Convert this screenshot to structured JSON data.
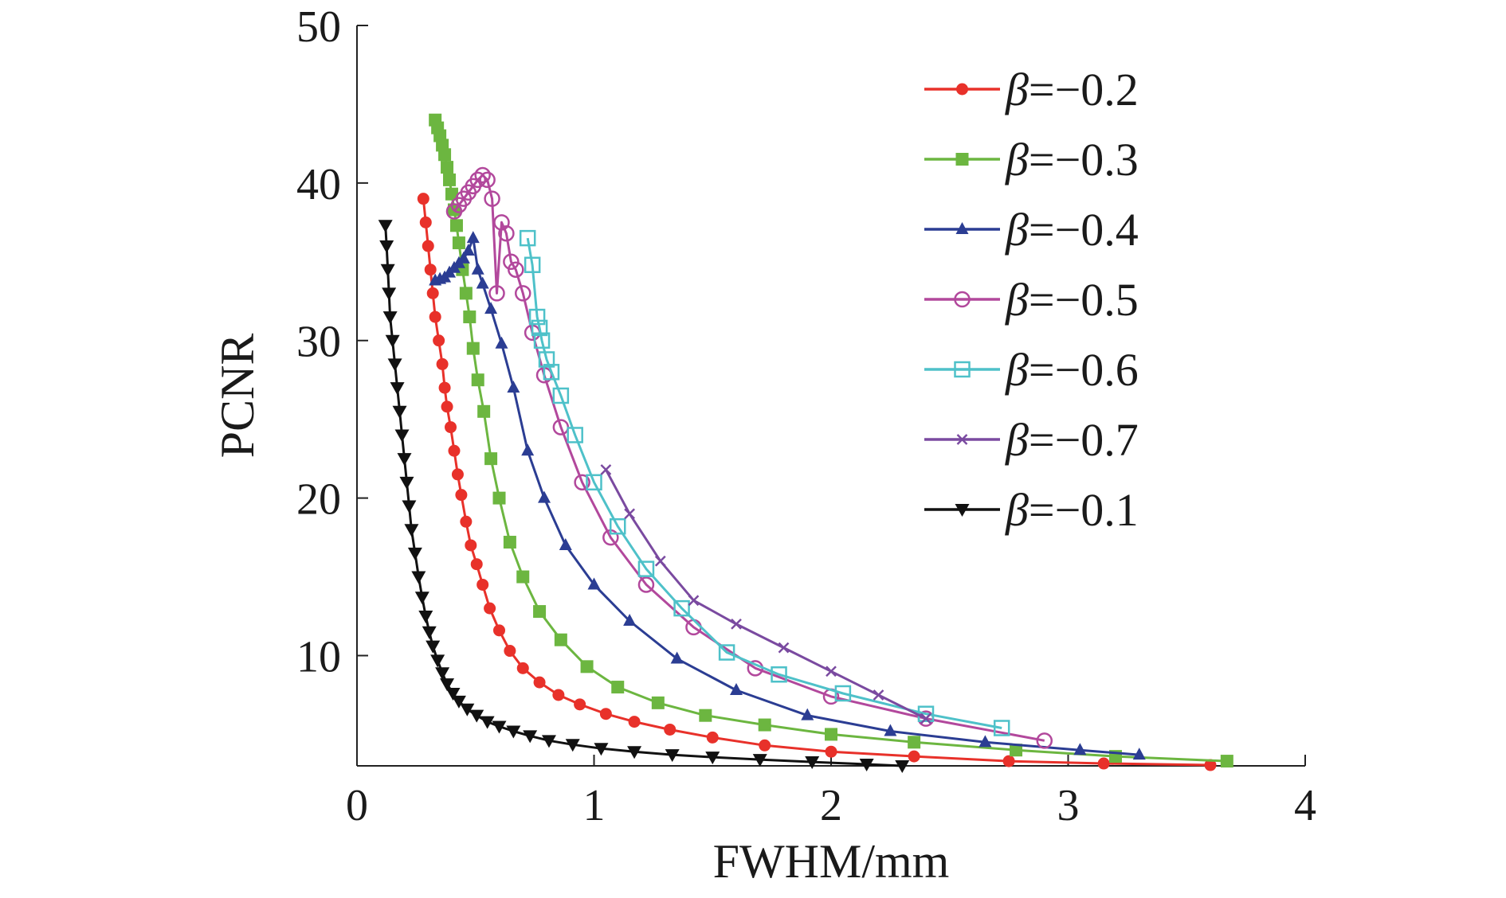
{
  "chart_data": {
    "type": "line",
    "title": "",
    "xlabel": "FWHM/mm",
    "ylabel": "PCNR",
    "xlim": [
      0,
      4
    ],
    "ylim": [
      3,
      50
    ],
    "x_ticks": [
      0,
      1,
      2,
      3,
      4
    ],
    "x_tick_labels": [
      "0",
      "1",
      "2",
      "3",
      "4"
    ],
    "y_ticks": [
      10,
      20,
      30,
      40,
      50
    ],
    "y_tick_labels": [
      "10",
      "20",
      "30",
      "40",
      "50"
    ],
    "grid": false,
    "legend_position": "top-right",
    "series": [
      {
        "name": "β=−0.2",
        "beta_symbol": "β",
        "beta_value": "=−0.2",
        "color": "#e8312a",
        "marker": "circle-filled",
        "points": [
          [
            0.28,
            39.0
          ],
          [
            0.29,
            37.5
          ],
          [
            0.3,
            36.0
          ],
          [
            0.31,
            34.5
          ],
          [
            0.32,
            33.0
          ],
          [
            0.33,
            31.5
          ],
          [
            0.345,
            30.0
          ],
          [
            0.36,
            28.5
          ],
          [
            0.37,
            27.0
          ],
          [
            0.38,
            25.8
          ],
          [
            0.395,
            24.5
          ],
          [
            0.41,
            23.0
          ],
          [
            0.425,
            21.5
          ],
          [
            0.44,
            20.2
          ],
          [
            0.46,
            18.5
          ],
          [
            0.48,
            17.0
          ],
          [
            0.505,
            15.8
          ],
          [
            0.53,
            14.5
          ],
          [
            0.56,
            13.0
          ],
          [
            0.6,
            11.6
          ],
          [
            0.645,
            10.3
          ],
          [
            0.7,
            9.2
          ],
          [
            0.77,
            8.3
          ],
          [
            0.85,
            7.5
          ],
          [
            0.94,
            6.9
          ],
          [
            1.05,
            6.3
          ],
          [
            1.17,
            5.8
          ],
          [
            1.32,
            5.3
          ],
          [
            1.5,
            4.8
          ],
          [
            1.72,
            4.3
          ],
          [
            2.0,
            3.9
          ],
          [
            2.35,
            3.6
          ],
          [
            2.75,
            3.3
          ],
          [
            3.15,
            3.15
          ],
          [
            3.6,
            3.05
          ]
        ]
      },
      {
        "name": "β=−0.3",
        "beta_symbol": "β",
        "beta_value": "=−0.3",
        "color": "#6cb640",
        "marker": "square-filled",
        "points": [
          [
            0.33,
            44.0
          ],
          [
            0.34,
            43.5
          ],
          [
            0.35,
            43.0
          ],
          [
            0.36,
            42.4
          ],
          [
            0.37,
            41.8
          ],
          [
            0.38,
            41.0
          ],
          [
            0.39,
            40.2
          ],
          [
            0.4,
            39.3
          ],
          [
            0.41,
            38.3
          ],
          [
            0.42,
            37.3
          ],
          [
            0.43,
            36.2
          ],
          [
            0.445,
            34.5
          ],
          [
            0.46,
            33.0
          ],
          [
            0.475,
            31.5
          ],
          [
            0.49,
            29.5
          ],
          [
            0.51,
            27.5
          ],
          [
            0.535,
            25.5
          ],
          [
            0.565,
            22.5
          ],
          [
            0.6,
            20.0
          ],
          [
            0.645,
            17.2
          ],
          [
            0.7,
            15.0
          ],
          [
            0.77,
            12.8
          ],
          [
            0.86,
            11.0
          ],
          [
            0.97,
            9.3
          ],
          [
            1.1,
            8.0
          ],
          [
            1.27,
            7.0
          ],
          [
            1.47,
            6.2
          ],
          [
            1.72,
            5.6
          ],
          [
            2.0,
            5.0
          ],
          [
            2.35,
            4.5
          ],
          [
            2.78,
            4.0
          ],
          [
            3.2,
            3.6
          ],
          [
            3.67,
            3.3
          ]
        ]
      },
      {
        "name": "β=−0.4",
        "beta_symbol": "β",
        "beta_value": "=−0.4",
        "color": "#2b3d93",
        "marker": "triangle-up-filled",
        "points": [
          [
            0.33,
            33.8
          ],
          [
            0.35,
            33.9
          ],
          [
            0.37,
            34.0
          ],
          [
            0.39,
            34.3
          ],
          [
            0.41,
            34.6
          ],
          [
            0.43,
            34.9
          ],
          [
            0.45,
            35.2
          ],
          [
            0.47,
            35.7
          ],
          [
            0.49,
            36.5
          ],
          [
            0.51,
            34.5
          ],
          [
            0.53,
            33.6
          ],
          [
            0.565,
            32.0
          ],
          [
            0.61,
            29.8
          ],
          [
            0.66,
            27.0
          ],
          [
            0.72,
            23.0
          ],
          [
            0.79,
            20.0
          ],
          [
            0.88,
            17.0
          ],
          [
            1.0,
            14.5
          ],
          [
            1.15,
            12.2
          ],
          [
            1.35,
            9.8
          ],
          [
            1.6,
            7.8
          ],
          [
            1.9,
            6.2
          ],
          [
            2.25,
            5.2
          ],
          [
            2.65,
            4.5
          ],
          [
            3.05,
            4.0
          ],
          [
            3.3,
            3.7
          ]
        ]
      },
      {
        "name": "β=−0.5",
        "beta_symbol": "β",
        "beta_value": "=−0.5",
        "color": "#b2489c",
        "marker": "circle-open",
        "points": [
          [
            0.41,
            38.2
          ],
          [
            0.43,
            38.6
          ],
          [
            0.45,
            39.0
          ],
          [
            0.47,
            39.4
          ],
          [
            0.49,
            39.8
          ],
          [
            0.51,
            40.2
          ],
          [
            0.53,
            40.5
          ],
          [
            0.55,
            40.2
          ],
          [
            0.57,
            39.0
          ],
          [
            0.59,
            33.0
          ],
          [
            0.61,
            37.5
          ],
          [
            0.63,
            36.8
          ],
          [
            0.65,
            35.0
          ],
          [
            0.67,
            34.5
          ],
          [
            0.7,
            33.0
          ],
          [
            0.74,
            30.5
          ],
          [
            0.79,
            27.8
          ],
          [
            0.86,
            24.5
          ],
          [
            0.95,
            21.0
          ],
          [
            1.07,
            17.5
          ],
          [
            1.22,
            14.5
          ],
          [
            1.42,
            11.8
          ],
          [
            1.68,
            9.2
          ],
          [
            2.0,
            7.4
          ],
          [
            2.4,
            6.0
          ],
          [
            2.9,
            4.6
          ]
        ]
      },
      {
        "name": "β=−0.6",
        "beta_symbol": "β",
        "beta_value": "=−0.6",
        "color": "#4ec1c9",
        "marker": "square-open",
        "points": [
          [
            0.72,
            36.5
          ],
          [
            0.74,
            34.8
          ],
          [
            0.76,
            31.5
          ],
          [
            0.77,
            30.8
          ],
          [
            0.78,
            30.0
          ],
          [
            0.8,
            28.8
          ],
          [
            0.82,
            28.0
          ],
          [
            0.86,
            26.5
          ],
          [
            0.92,
            24.0
          ],
          [
            1.0,
            21.0
          ],
          [
            1.1,
            18.2
          ],
          [
            1.22,
            15.5
          ],
          [
            1.37,
            13.0
          ],
          [
            1.56,
            10.2
          ],
          [
            1.78,
            8.8
          ],
          [
            2.05,
            7.6
          ],
          [
            2.4,
            6.3
          ],
          [
            2.72,
            5.4
          ]
        ]
      },
      {
        "name": "β=−0.7",
        "beta_symbol": "β",
        "beta_value": "=−0.7",
        "color": "#7a4aa0",
        "marker": "x",
        "points": [
          [
            1.05,
            21.8
          ],
          [
            1.15,
            19.0
          ],
          [
            1.28,
            16.0
          ],
          [
            1.42,
            13.5
          ],
          [
            1.6,
            12.0
          ],
          [
            1.8,
            10.5
          ],
          [
            2.0,
            9.0
          ],
          [
            2.2,
            7.5
          ],
          [
            2.4,
            6.0
          ]
        ]
      },
      {
        "name": "β=−0.1",
        "beta_symbol": "β",
        "beta_value": "=−0.1",
        "color": "#111111",
        "marker": "triangle-down-filled",
        "points": [
          [
            0.12,
            37.3
          ],
          [
            0.125,
            36.0
          ],
          [
            0.13,
            34.5
          ],
          [
            0.135,
            33.0
          ],
          [
            0.14,
            31.5
          ],
          [
            0.15,
            30.0
          ],
          [
            0.16,
            28.5
          ],
          [
            0.17,
            27.0
          ],
          [
            0.18,
            25.5
          ],
          [
            0.19,
            24.0
          ],
          [
            0.2,
            22.5
          ],
          [
            0.21,
            21.0
          ],
          [
            0.22,
            19.5
          ],
          [
            0.23,
            18.0
          ],
          [
            0.245,
            16.5
          ],
          [
            0.26,
            15.0
          ],
          [
            0.275,
            13.7
          ],
          [
            0.29,
            12.5
          ],
          [
            0.305,
            11.5
          ],
          [
            0.32,
            10.6
          ],
          [
            0.34,
            9.7
          ],
          [
            0.36,
            8.9
          ],
          [
            0.38,
            8.2
          ],
          [
            0.405,
            7.6
          ],
          [
            0.43,
            7.1
          ],
          [
            0.465,
            6.6
          ],
          [
            0.505,
            6.2
          ],
          [
            0.55,
            5.8
          ],
          [
            0.6,
            5.5
          ],
          [
            0.66,
            5.2
          ],
          [
            0.73,
            4.9
          ],
          [
            0.81,
            4.6
          ],
          [
            0.91,
            4.35
          ],
          [
            1.03,
            4.1
          ],
          [
            1.17,
            3.9
          ],
          [
            1.33,
            3.7
          ],
          [
            1.5,
            3.55
          ],
          [
            1.7,
            3.4
          ],
          [
            1.92,
            3.25
          ],
          [
            2.15,
            3.1
          ],
          [
            2.3,
            3.0
          ]
        ]
      }
    ]
  }
}
